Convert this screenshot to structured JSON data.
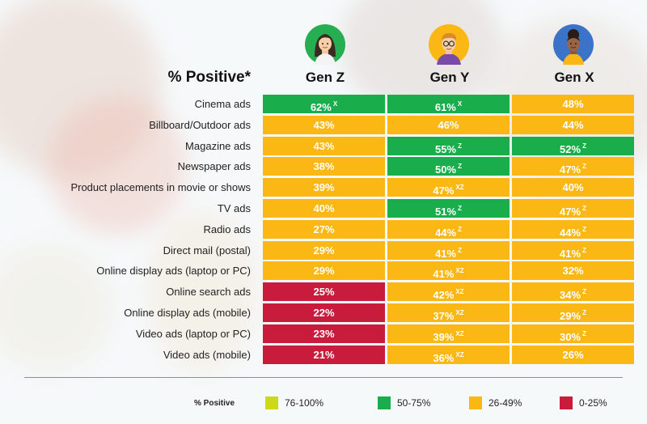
{
  "colors": {
    "range_76_100": "#cbd916",
    "range_50_75": "#19ad4b",
    "range_26_49": "#fbb814",
    "range_0_25": "#c91c3d"
  },
  "chart_data": {
    "type": "table",
    "title": "% Positive*",
    "columns": [
      "Gen Z",
      "Gen Y",
      "Gen X"
    ],
    "rows": [
      {
        "label": "Cinema ads",
        "values": [
          62,
          61,
          48
        ],
        "marks": [
          "X",
          "X",
          ""
        ]
      },
      {
        "label": "Billboard/Outdoor ads",
        "values": [
          43,
          46,
          44
        ],
        "marks": [
          "",
          "",
          ""
        ]
      },
      {
        "label": "Magazine ads",
        "values": [
          43,
          55,
          52
        ],
        "marks": [
          "",
          "Z",
          "Z"
        ]
      },
      {
        "label": "Newspaper ads",
        "values": [
          38,
          50,
          47
        ],
        "marks": [
          "",
          "Z",
          "Z"
        ]
      },
      {
        "label": "Product placements in movie or shows",
        "values": [
          39,
          47,
          40
        ],
        "marks": [
          "",
          "XZ",
          ""
        ]
      },
      {
        "label": "TV ads",
        "values": [
          40,
          51,
          47
        ],
        "marks": [
          "",
          "Z",
          "Z"
        ]
      },
      {
        "label": "Radio ads",
        "values": [
          27,
          44,
          44
        ],
        "marks": [
          "",
          "Z",
          "Z"
        ]
      },
      {
        "label": "Direct mail (postal)",
        "values": [
          29,
          41,
          41
        ],
        "marks": [
          "",
          "Z",
          "Z"
        ]
      },
      {
        "label": "Online display ads (laptop or PC)",
        "values": [
          29,
          41,
          32
        ],
        "marks": [
          "",
          "XZ",
          ""
        ]
      },
      {
        "label": "Online search ads",
        "values": [
          25,
          42,
          34
        ],
        "marks": [
          "",
          "XZ",
          "Z"
        ]
      },
      {
        "label": "Online display  ads (mobile)",
        "values": [
          22,
          37,
          29
        ],
        "marks": [
          "",
          "XZ",
          "Z"
        ]
      },
      {
        "label": "Video ads (laptop or PC)",
        "values": [
          23,
          39,
          30
        ],
        "marks": [
          "",
          "XZ",
          "Z"
        ]
      },
      {
        "label": "Video ads (mobile)",
        "values": [
          21,
          36,
          26
        ],
        "marks": [
          "",
          "XZ",
          ""
        ]
      }
    ],
    "value_suffix": "%",
    "legend": {
      "title": "% Positive",
      "items": [
        {
          "label": "76-100%",
          "color": "#cbd916"
        },
        {
          "label": "50-75%",
          "color": "#19ad4b"
        },
        {
          "label": "26-49%",
          "color": "#fbb814"
        },
        {
          "label": "0-25%",
          "color": "#c91c3d"
        }
      ]
    }
  },
  "avatars": [
    "woman-avatar-icon",
    "man-glasses-avatar-icon",
    "woman-afro-avatar-icon"
  ]
}
